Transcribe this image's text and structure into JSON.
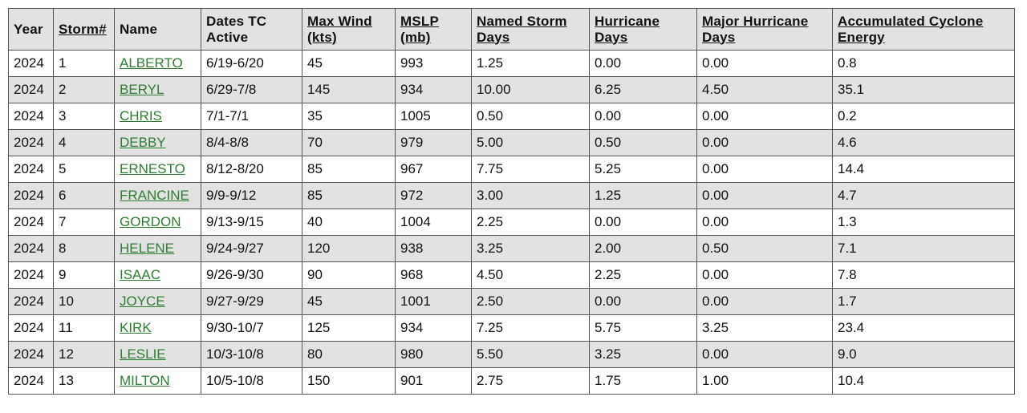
{
  "table": {
    "headers": {
      "year": "Year",
      "storm_num": "Storm#",
      "name": "Name",
      "dates": "Dates TC Active",
      "max_wind": "Max Wind (kts)",
      "mslp": "MSLP (mb)",
      "named_storm_days": "Named Storm Days",
      "hurricane_days": "Hurricane Days",
      "major_hurricane_days": "Major Hurricane Days",
      "ace": "Accumulated Cyclone Energy"
    },
    "rows": [
      {
        "year": "2024",
        "num": "1",
        "name": "ALBERTO",
        "dates": "6/19-6/20",
        "wind": "45",
        "mslp": "993",
        "nsd": "1.25",
        "hd": "0.00",
        "mhd": "0.00",
        "ace": "0.8"
      },
      {
        "year": "2024",
        "num": "2",
        "name": "BERYL",
        "dates": "6/29-7/8",
        "wind": "145",
        "mslp": "934",
        "nsd": "10.00",
        "hd": "6.25",
        "mhd": "4.50",
        "ace": "35.1"
      },
      {
        "year": "2024",
        "num": "3",
        "name": "CHRIS",
        "dates": "7/1-7/1",
        "wind": "35",
        "mslp": "1005",
        "nsd": "0.50",
        "hd": "0.00",
        "mhd": "0.00",
        "ace": "0.2"
      },
      {
        "year": "2024",
        "num": "4",
        "name": "DEBBY",
        "dates": "8/4-8/8",
        "wind": "70",
        "mslp": "979",
        "nsd": "5.00",
        "hd": "0.50",
        "mhd": "0.00",
        "ace": "4.6"
      },
      {
        "year": "2024",
        "num": "5",
        "name": "ERNESTO",
        "dates": "8/12-8/20",
        "wind": "85",
        "mslp": "967",
        "nsd": "7.75",
        "hd": "5.25",
        "mhd": "0.00",
        "ace": "14.4"
      },
      {
        "year": "2024",
        "num": "6",
        "name": "FRANCINE",
        "dates": "9/9-9/12",
        "wind": "85",
        "mslp": "972",
        "nsd": "3.00",
        "hd": "1.25",
        "mhd": "0.00",
        "ace": "4.7"
      },
      {
        "year": "2024",
        "num": "7",
        "name": "GORDON",
        "dates": "9/13-9/15",
        "wind": "40",
        "mslp": "1004",
        "nsd": "2.25",
        "hd": "0.00",
        "mhd": "0.00",
        "ace": "1.3"
      },
      {
        "year": "2024",
        "num": "8",
        "name": "HELENE",
        "dates": "9/24-9/27",
        "wind": "120",
        "mslp": "938",
        "nsd": "3.25",
        "hd": "2.00",
        "mhd": "0.50",
        "ace": "7.1"
      },
      {
        "year": "2024",
        "num": "9",
        "name": "ISAAC",
        "dates": "9/26-9/30",
        "wind": "90",
        "mslp": "968",
        "nsd": "4.50",
        "hd": "2.25",
        "mhd": "0.00",
        "ace": "7.8"
      },
      {
        "year": "2024",
        "num": "10",
        "name": "JOYCE",
        "dates": "9/27-9/29",
        "wind": "45",
        "mslp": "1001",
        "nsd": "2.50",
        "hd": "0.00",
        "mhd": "0.00",
        "ace": "1.7"
      },
      {
        "year": "2024",
        "num": "11",
        "name": "KIRK",
        "dates": "9/30-10/7",
        "wind": "125",
        "mslp": "934",
        "nsd": "7.25",
        "hd": "5.75",
        "mhd": "3.25",
        "ace": "23.4"
      },
      {
        "year": "2024",
        "num": "12",
        "name": "LESLIE",
        "dates": "10/3-10/8",
        "wind": "80",
        "mslp": "980",
        "nsd": "5.50",
        "hd": "3.25",
        "mhd": "0.00",
        "ace": "9.0"
      },
      {
        "year": "2024",
        "num": "13",
        "name": "MILTON",
        "dates": "10/5-10/8",
        "wind": "150",
        "mslp": "901",
        "nsd": "2.75",
        "hd": "1.75",
        "mhd": "1.00",
        "ace": "10.4"
      }
    ]
  },
  "colors": {
    "header_bg": "#e2e2e2",
    "alt_row_bg": "#e2e2e2",
    "link": "#2e7d32",
    "border": "#555555"
  }
}
